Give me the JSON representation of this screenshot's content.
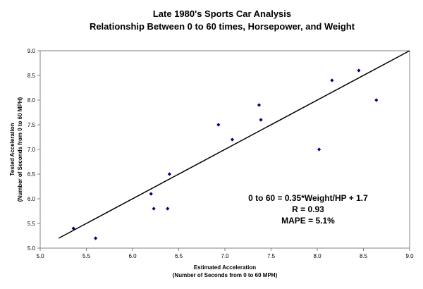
{
  "chart_data": {
    "type": "scatter",
    "title": "Late 1980's Sports Car Analysis",
    "subtitle": "Relationship Between 0 to 60 times, Horsepower, and Weight",
    "xlabel": "Estimated Acceleration",
    "xlabel_sub": "(Number of Seconds from 0 to 60 MPH)",
    "ylabel": "Tested Acceleration",
    "ylabel_sub": "(Number of Seconds from 0 to 60 MPH)",
    "xlim": [
      5.0,
      9.0
    ],
    "ylim": [
      5.0,
      9.0
    ],
    "xticks": [
      "5.0",
      "5.5",
      "6.0",
      "6.5",
      "7.0",
      "7.5",
      "8.0",
      "8.5",
      "9.0"
    ],
    "yticks": [
      "5.0",
      "5.5",
      "6.0",
      "6.5",
      "7.0",
      "7.5",
      "8.0",
      "8.5",
      "9.0"
    ],
    "grid": false,
    "series": [
      {
        "points": [
          {
            "x": 5.36,
            "y": 5.4
          },
          {
            "x": 5.6,
            "y": 5.2
          },
          {
            "x": 6.2,
            "y": 6.1
          },
          {
            "x": 6.23,
            "y": 5.8
          },
          {
            "x": 6.38,
            "y": 5.8
          },
          {
            "x": 6.4,
            "y": 6.5
          },
          {
            "x": 6.93,
            "y": 7.5
          },
          {
            "x": 7.08,
            "y": 7.2
          },
          {
            "x": 7.37,
            "y": 7.9
          },
          {
            "x": 7.39,
            "y": 7.6
          },
          {
            "x": 8.02,
            "y": 7.0
          },
          {
            "x": 8.16,
            "y": 8.4
          },
          {
            "x": 8.45,
            "y": 8.6
          },
          {
            "x": 8.64,
            "y": 8.0
          }
        ],
        "color": "#00007f"
      }
    ],
    "trendline": {
      "x": [
        5.2,
        9.0
      ],
      "y": [
        5.2,
        9.0
      ],
      "color": "#000000"
    },
    "annotations": [
      "0 to 60 = 0.35*Weight/HP + 1.7",
      "R = 0.93",
      "MAPE = 5.1%"
    ]
  }
}
